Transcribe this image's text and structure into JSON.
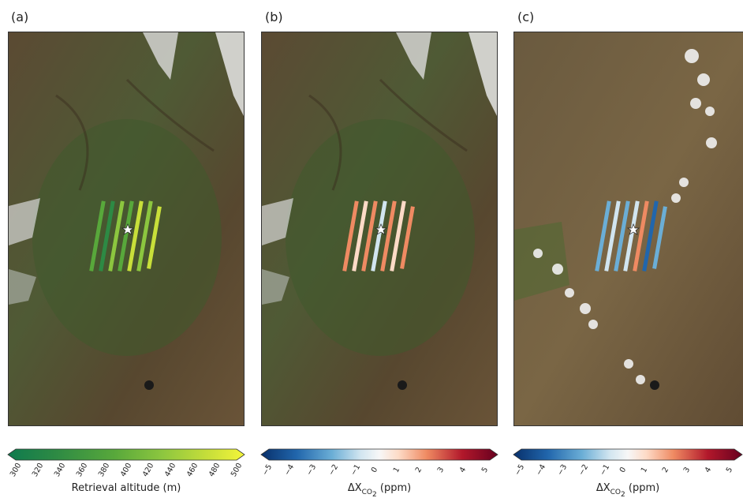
{
  "panels": [
    {
      "label": "(a)",
      "colorbar": {
        "ticks": [
          "300",
          "320",
          "340",
          "360",
          "380",
          "400",
          "420",
          "440",
          "460",
          "480",
          "500"
        ],
        "label": "Retrieval altitude (m)",
        "colormap": "green-yellow",
        "colors": [
          "#0f7a4e",
          "#2d8a44",
          "#58a83b",
          "#8cc63f",
          "#c8df3a",
          "#f4f53a"
        ]
      },
      "marker": "star",
      "swath": "altitude-colored strips (green to yellow)"
    },
    {
      "label": "(b)",
      "colorbar": {
        "ticks": [
          "−5",
          "−4",
          "−3",
          "−2",
          "−1",
          "0",
          "1",
          "2",
          "3",
          "4",
          "5"
        ],
        "label_main": "ΔX",
        "label_sub": "CO",
        "label_sub2": "2",
        "label_unit": "(ppm)",
        "colormap": "diverging-blue-red",
        "colors": [
          "#08306b",
          "#2166ac",
          "#6baed6",
          "#d1e5f0",
          "#f7f7f7",
          "#fddbc7",
          "#ef8a62",
          "#b2182b",
          "#67001f"
        ]
      },
      "marker": "star",
      "swath": "ΔXCO2-colored strips (mostly light red)"
    },
    {
      "label": "(c)",
      "colorbar": {
        "ticks": [
          "−5",
          "−4",
          "−3",
          "−2",
          "−1",
          "0",
          "1",
          "2",
          "3",
          "4",
          "5"
        ],
        "label_main": "ΔX",
        "label_sub": "CO",
        "label_sub2": "2",
        "label_unit": "(ppm)",
        "colormap": "diverging-blue-red",
        "colors": [
          "#08306b",
          "#2166ac",
          "#6baed6",
          "#d1e5f0",
          "#f7f7f7",
          "#fddbc7",
          "#ef8a62",
          "#b2182b",
          "#67001f"
        ]
      },
      "marker": "star",
      "swath": "ΔXCO2-colored strips (mostly light blue)"
    }
  ],
  "colors": {
    "terrain_dark": "#4a3b28",
    "terrain_mid": "#6e5a3c",
    "vegetation": "#3f5e2a",
    "snow": "#e8e8e8"
  }
}
